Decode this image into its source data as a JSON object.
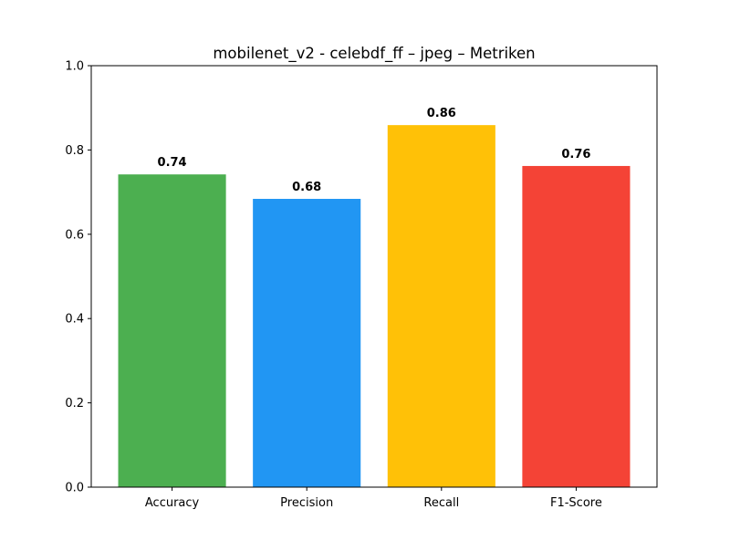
{
  "chart_data": {
    "type": "bar",
    "title": "mobilenet_v2 - celebdf_ff – jpeg – Metriken",
    "xlabel": "",
    "ylabel": "",
    "categories": [
      "Accuracy",
      "Precision",
      "Recall",
      "F1-Score"
    ],
    "values": [
      0.742,
      0.684,
      0.859,
      0.762
    ],
    "data_labels": [
      "0.74",
      "0.68",
      "0.86",
      "0.76"
    ],
    "colors": [
      "#4caf50",
      "#2196f3",
      "#ffc107",
      "#f44336"
    ],
    "ylim": [
      0,
      1.0
    ],
    "yticks": [
      "0.0",
      "0.2",
      "0.4",
      "0.6",
      "0.8",
      "1.0"
    ],
    "grid": false,
    "legend": "none"
  }
}
